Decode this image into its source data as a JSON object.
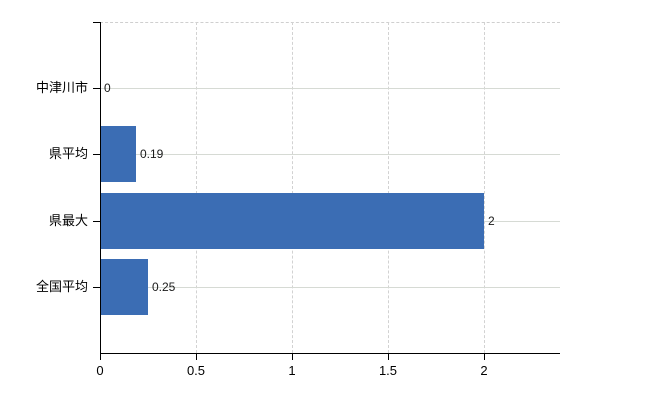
{
  "chart_data": {
    "type": "bar",
    "orientation": "horizontal",
    "title": "",
    "xlabel": "",
    "ylabel": "",
    "categories": [
      "中津川市",
      "県平均",
      "県最大",
      "全国平均"
    ],
    "values": [
      0,
      0.19,
      2,
      0.25
    ],
    "value_labels": [
      "0",
      "0.19",
      "2",
      "0.25"
    ],
    "x_ticks": [
      0,
      0.5,
      1,
      1.5,
      2
    ],
    "x_tick_labels": [
      "0",
      "0.5",
      "1",
      "1.5",
      "2"
    ],
    "xlim": [
      0,
      2.4
    ],
    "grid": true,
    "legend": false,
    "colors": {
      "bar_fill": "#3b6db4",
      "axis": "#000000",
      "grid_horizontal": "#d6dad4",
      "grid_vertical_dashed": "#d2d2d2",
      "top_border_dashed": "#cfcfcf",
      "text": "#000000",
      "background": "#ffffff"
    }
  }
}
